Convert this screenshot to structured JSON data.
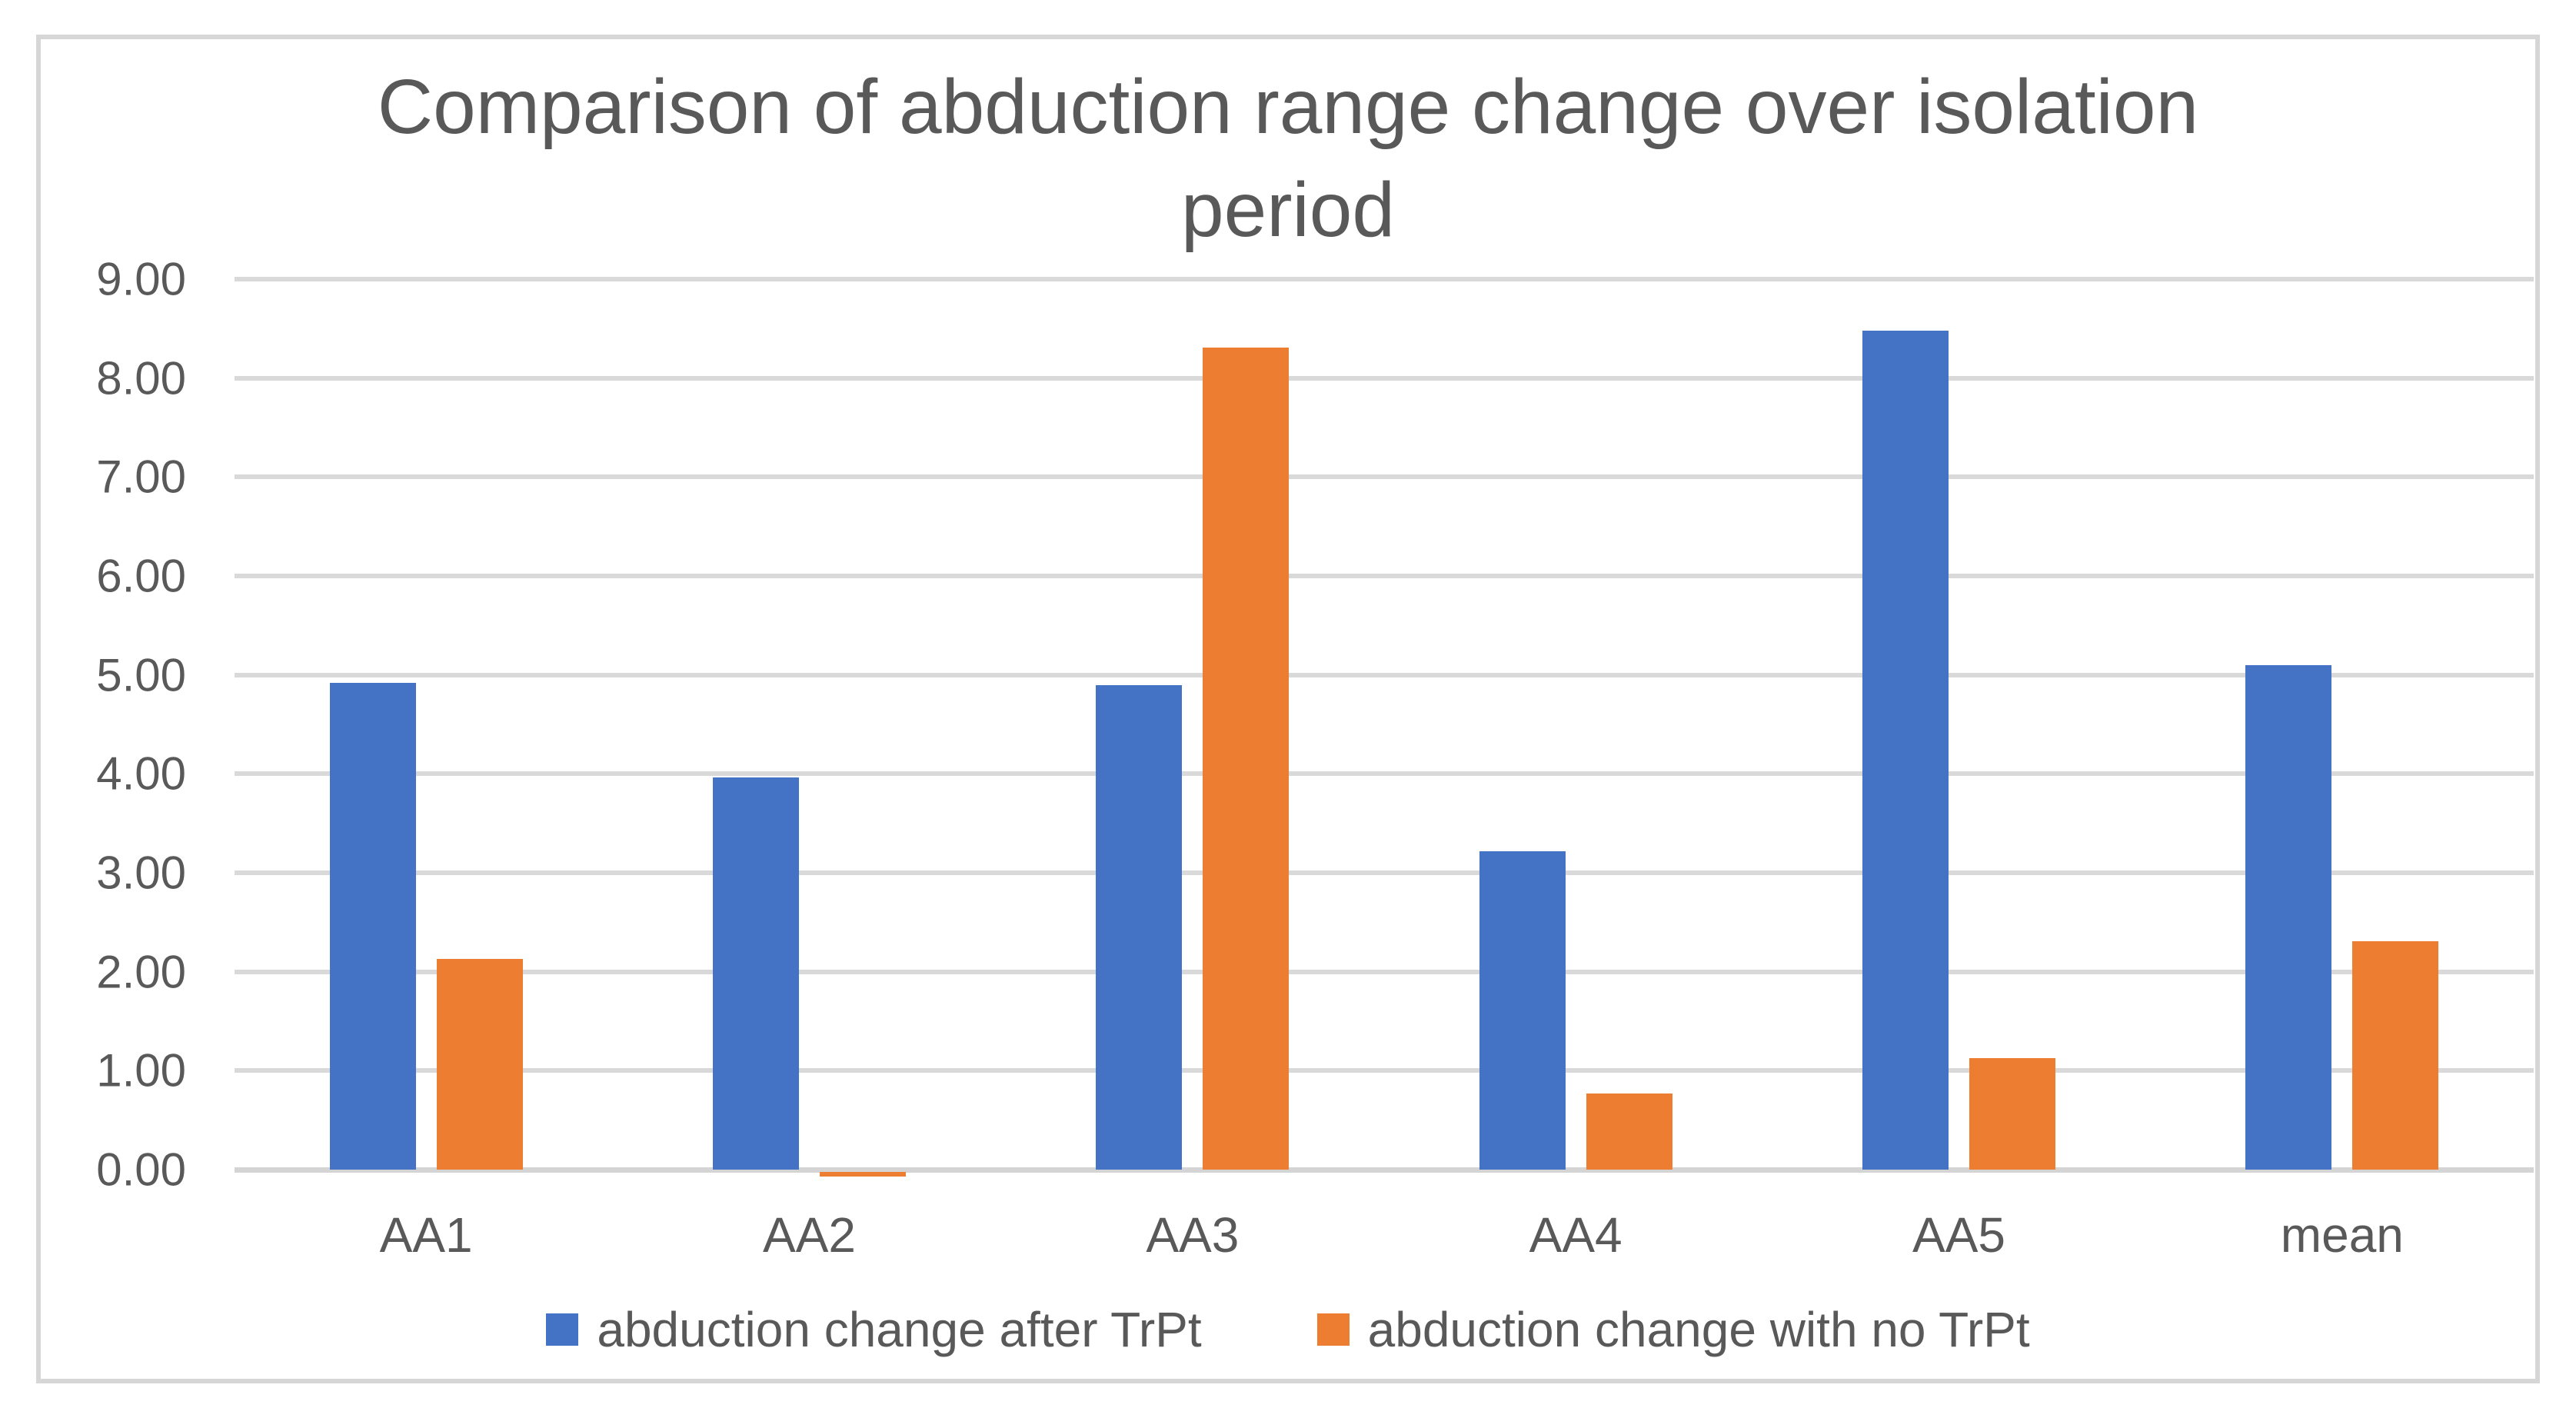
{
  "chart_data": {
    "type": "bar",
    "title": "Comparison of abduction range change over isolation period",
    "title_lines": [
      "Comparison of abduction range change over isolation",
      "period"
    ],
    "categories": [
      "AA1",
      "AA2",
      "AA3",
      "AA4",
      "AA5",
      "mean"
    ],
    "series": [
      {
        "name": "abduction change after TrPt",
        "color": "#4472C4",
        "values": [
          4.92,
          3.96,
          4.9,
          3.22,
          8.48,
          5.1
        ]
      },
      {
        "name": "abduction change with no TrPt",
        "color": "#ED7D31",
        "values": [
          2.13,
          -0.05,
          8.31,
          0.77,
          1.13,
          2.31
        ]
      }
    ],
    "y_axis": {
      "min": 0.0,
      "max": 9.0,
      "step": 1.0,
      "tick_labels_top_to_bottom": [
        "9.00",
        "8.00",
        "7.00",
        "6.00",
        "5.00",
        "4.00",
        "3.00",
        "2.00",
        "1.00",
        "0.00"
      ]
    },
    "grid": true,
    "legend_position": "bottom",
    "text_color": "#595959",
    "gridline_color": "#D9D9D9",
    "frame_border_color": "#D6D6D6",
    "background": "#FFFFFF"
  }
}
